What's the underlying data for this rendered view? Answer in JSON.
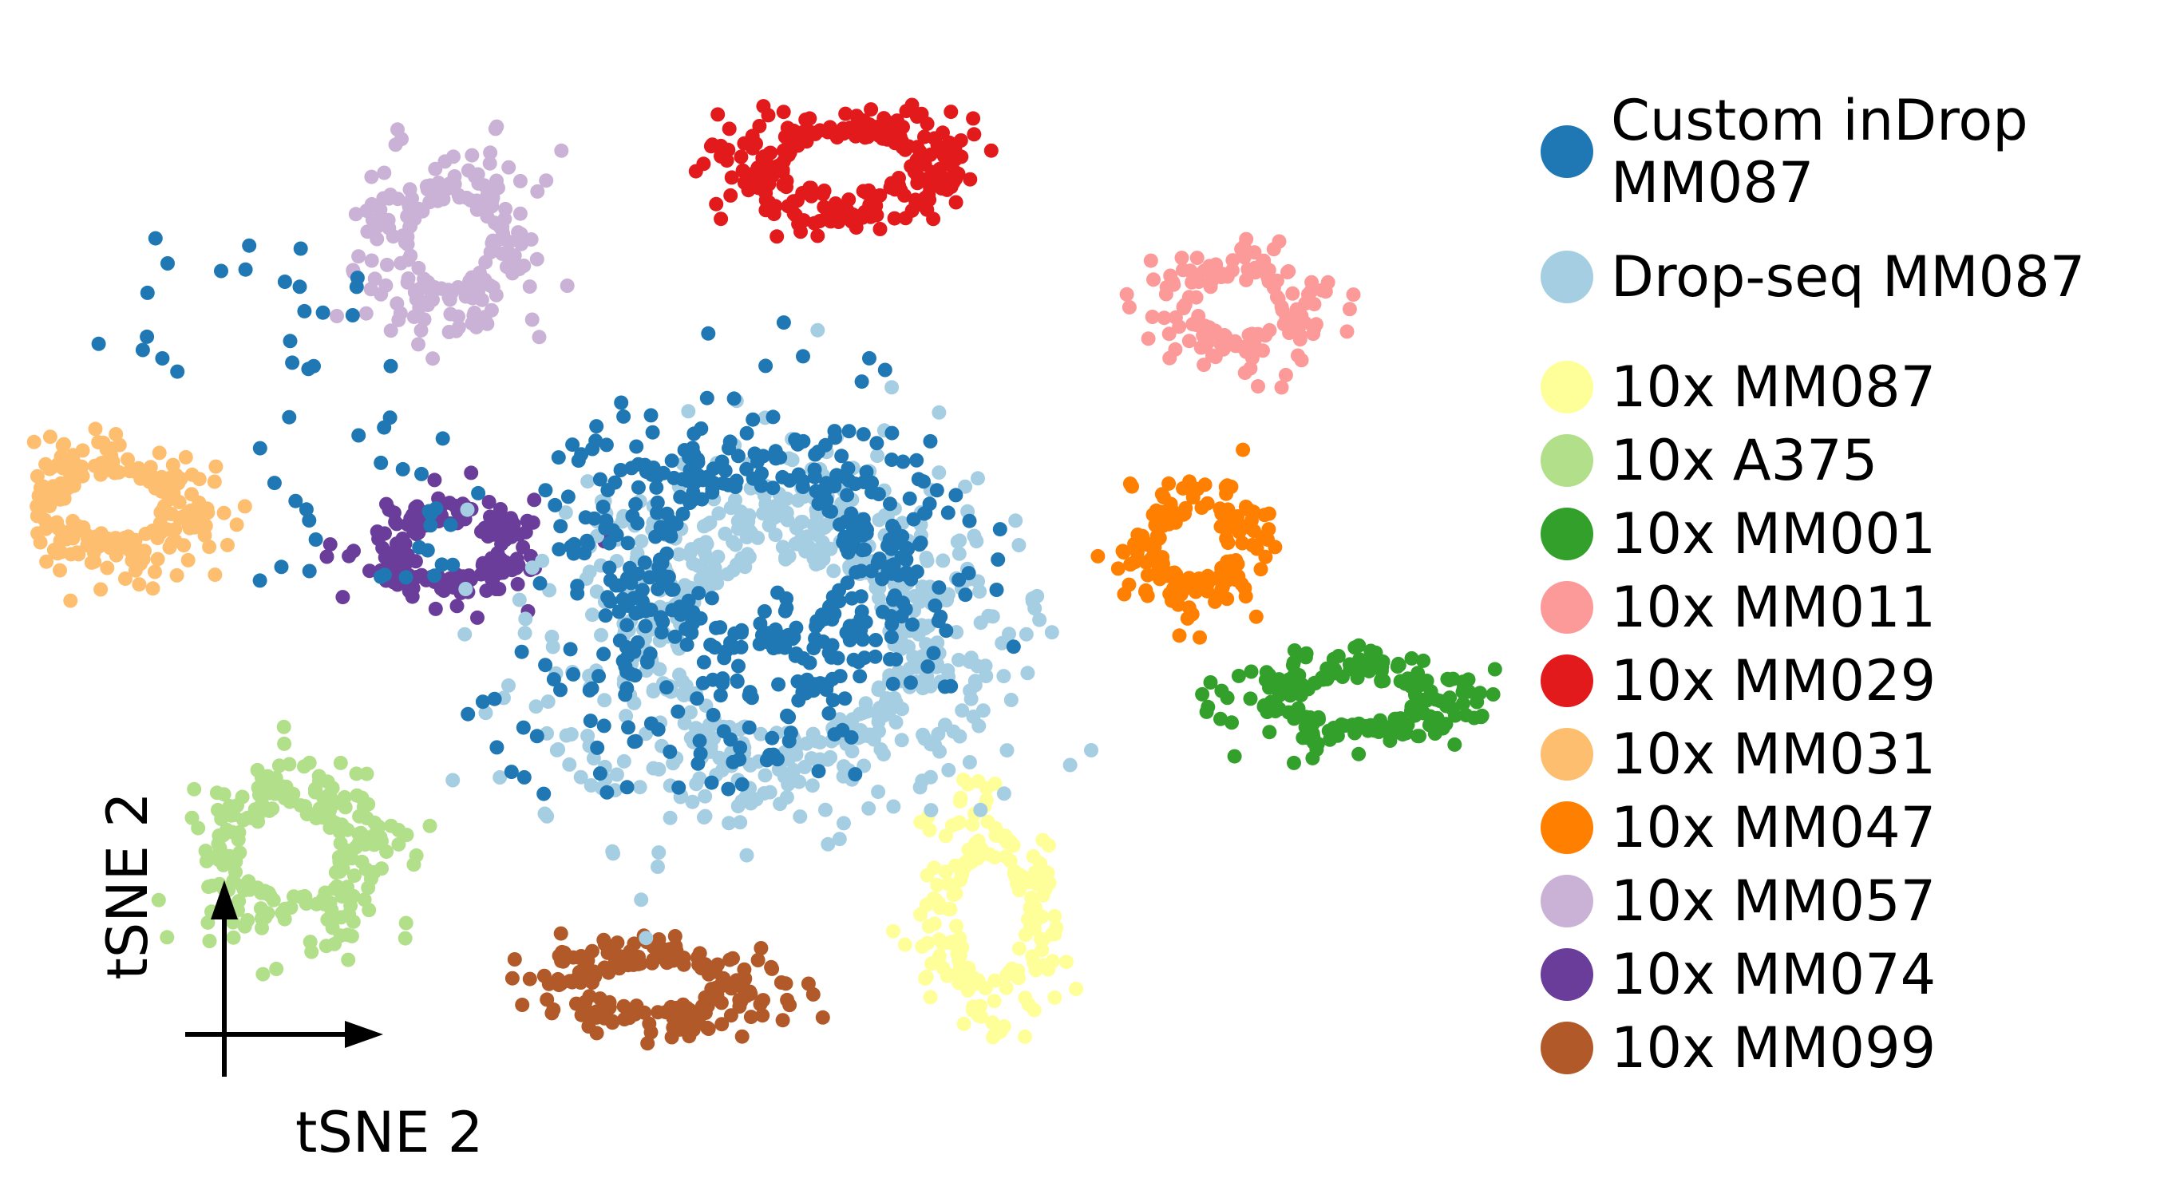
{
  "chart_data": {
    "type": "scatter",
    "title": "",
    "xlabel": "tSNE 2",
    "ylabel": "tSNE 2",
    "xlim": [
      -50,
      50
    ],
    "ylim": [
      -50,
      50
    ],
    "axes_visible": false,
    "axis_arrows": true,
    "grid": false,
    "legend_position": "right",
    "series": [
      {
        "name": "Custom inDrop\nMM087",
        "color": "#1f78b4",
        "clusters": [
          {
            "center": [
              -2,
              4
            ],
            "spread": [
              11,
              12
            ],
            "n": 420
          },
          {
            "center": [
              -5,
              -8
            ],
            "spread": [
              10,
              8
            ],
            "n": 90
          },
          {
            "center": [
              -38,
              26
            ],
            "spread": [
              8,
              7
            ],
            "n": 25
          },
          {
            "center": [
              -28,
              8
            ],
            "spread": [
              6,
              8
            ],
            "n": 30
          }
        ]
      },
      {
        "name": "Drop-seq MM087",
        "color": "#a6cee3",
        "clusters": [
          {
            "center": [
              0,
              -4
            ],
            "spread": [
              13,
              14
            ],
            "n": 650
          }
        ]
      },
      {
        "name": "10x MM087",
        "color": "#ffff99",
        "clusters": [
          {
            "center": [
              14,
              -29
            ],
            "spread": [
              4,
              10
            ],
            "n": 180
          }
        ]
      },
      {
        "name": "10x A375",
        "color": "#b2df8a",
        "clusters": [
          {
            "center": [
              -34,
              -23
            ],
            "spread": [
              6,
              7
            ],
            "n": 220
          }
        ]
      },
      {
        "name": "10x MM001",
        "color": "#33a02c",
        "clusters": [
          {
            "center": [
              39,
              -9
            ],
            "spread": [
              7,
              3.5
            ],
            "n": 200
          }
        ]
      },
      {
        "name": "10x MM011",
        "color": "#fb9a99",
        "clusters": [
          {
            "center": [
              31,
              27
            ],
            "spread": [
              5,
              4.5
            ],
            "n": 140
          }
        ]
      },
      {
        "name": "10x MM029",
        "color": "#e31a1c",
        "clusters": [
          {
            "center": [
              4,
              40
            ],
            "spread": [
              7.5,
              4.5
            ],
            "n": 250
          }
        ]
      },
      {
        "name": "10x MM031",
        "color": "#fdbf6f",
        "clusters": [
          {
            "center": [
              -46,
              9
            ],
            "spread": [
              6,
              5
            ],
            "n": 240
          }
        ]
      },
      {
        "name": "10x MM047",
        "color": "#ff7f00",
        "clusters": [
          {
            "center": [
              28,
              5
            ],
            "spread": [
              4,
              5
            ],
            "n": 160
          }
        ]
      },
      {
        "name": "10x MM057",
        "color": "#cab2d6",
        "clusters": [
          {
            "center": [
              -23,
              33
            ],
            "spread": [
              5,
              7
            ],
            "n": 200
          }
        ]
      },
      {
        "name": "10x MM074",
        "color": "#6a3d9a",
        "clusters": [
          {
            "center": [
              -23,
              5
            ],
            "spread": [
              5,
              4
            ],
            "n": 170
          }
        ]
      },
      {
        "name": "10x MM099",
        "color": "#b15928",
        "clusters": [
          {
            "center": [
              -9,
              -35
            ],
            "spread": [
              7,
              3.5
            ],
            "n": 200
          }
        ]
      }
    ]
  }
}
